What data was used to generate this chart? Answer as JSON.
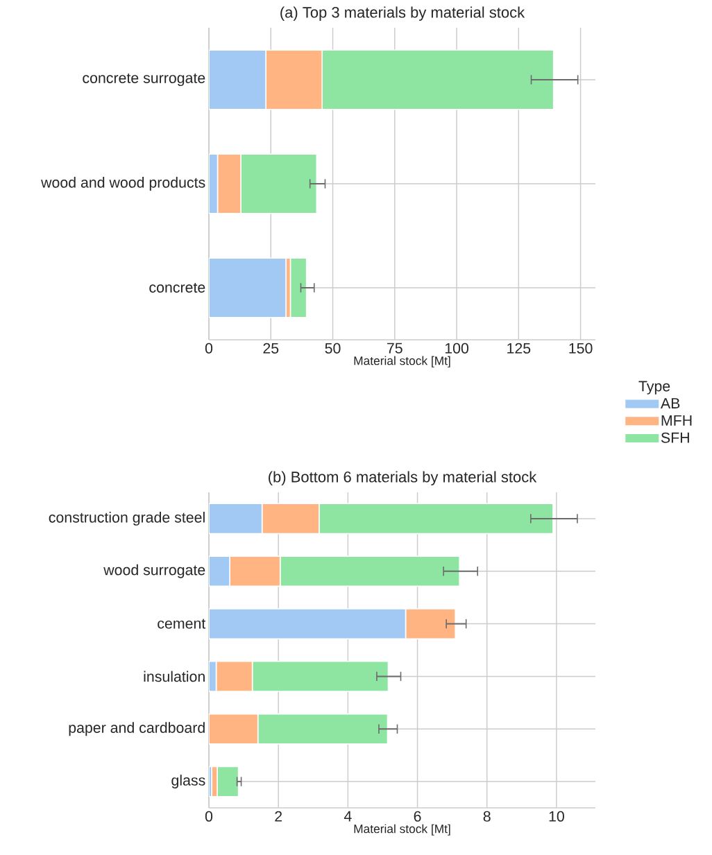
{
  "chart_data": [
    {
      "type": "bar",
      "orientation": "horizontal",
      "stacked": true,
      "title": "(a) Top 3 materials by material stock",
      "xlabel": "Material stock [Mt]",
      "legend_title": "Type",
      "legend": "right",
      "grid": true,
      "categories": [
        "concrete surrogate",
        "wood and wood products",
        "concrete"
      ],
      "xlim": [
        0,
        156
      ],
      "xticks": [
        0,
        25,
        50,
        75,
        100,
        125,
        150
      ],
      "series": [
        {
          "name": "AB",
          "color": "#a1c9f4",
          "values": [
            23,
            3.5,
            31.1
          ]
        },
        {
          "name": "MFH",
          "color": "#ffb482",
          "values": [
            22.7,
            9.4,
            1.8
          ]
        },
        {
          "name": "SFH",
          "color": "#8de5a1",
          "values": [
            93.4,
            30.6,
            6.5
          ],
          "errors": [
            [
              130.1,
              148.9
            ],
            [
              40.8,
              46.9
            ],
            [
              37.1,
              42.5
            ]
          ]
        }
      ]
    },
    {
      "type": "bar",
      "orientation": "horizontal",
      "stacked": true,
      "title": "(b) Bottom 6 materials by material stock",
      "xlabel": "Material stock [Mt]",
      "grid": true,
      "categories": [
        "construction grade steel",
        "wood surrogate",
        "cement",
        "insulation",
        "paper and cardboard",
        "glass"
      ],
      "xlim": [
        0,
        11.12
      ],
      "xticks": [
        0,
        2,
        4,
        6,
        8,
        10
      ],
      "series": [
        {
          "color": "#a1c9f4",
          "values": [
            1.53,
            0.6,
            5.66,
            0.21,
            0,
            0.08
          ]
        },
        {
          "color": "#ffb482",
          "values": [
            1.64,
            1.45,
            1.43,
            1.04,
            1.41,
            0.16
          ]
        },
        {
          "color": "#8de5a1",
          "values": [
            6.73,
            5.16,
            0,
            3.91,
            3.73,
            0.61
          ],
          "errors": [
            [
              9.26,
              10.6
            ],
            [
              6.75,
              7.73
            ],
            [
              6.83,
              7.4
            ],
            [
              4.83,
              5.52
            ],
            [
              4.89,
              5.42
            ],
            [
              0.81,
              0.93
            ]
          ]
        }
      ]
    }
  ]
}
